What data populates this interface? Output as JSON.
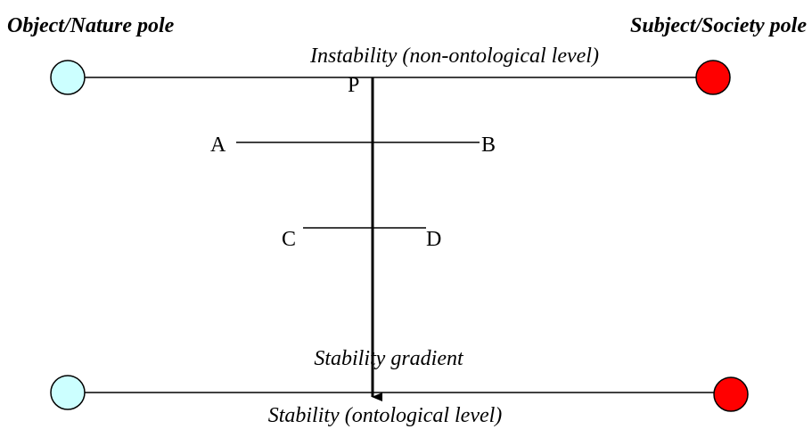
{
  "poles": {
    "left": "Object/Nature pole",
    "right": "Subject/Society pole"
  },
  "levels": {
    "top": "Instability (non-ontological level)",
    "bottom": "Stability (ontological level)"
  },
  "gradient": "Stability gradient",
  "points": {
    "p": "P",
    "a": "A",
    "b": "B",
    "c": "C",
    "d": "D"
  }
}
